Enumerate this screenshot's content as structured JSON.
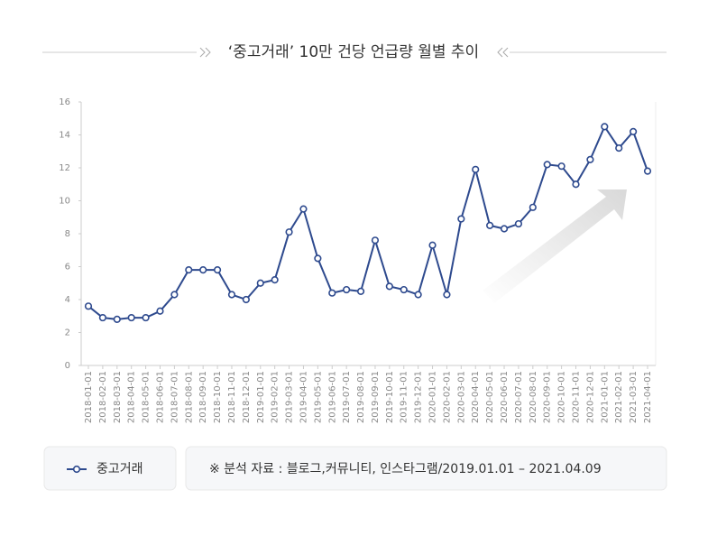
{
  "chart_data": {
    "type": "line",
    "title": "‘중고거래’ 10만 건당 언급량 월별 추이",
    "categories": [
      "2018-01-01",
      "2018-02-01",
      "2018-03-01",
      "2018-04-01",
      "2018-05-01",
      "2018-06-01",
      "2018-07-01",
      "2018-08-01",
      "2018-09-01",
      "2018-10-01",
      "2018-11-01",
      "2018-12-01",
      "2019-01-01",
      "2019-02-01",
      "2019-03-01",
      "2019-04-01",
      "2019-05-01",
      "2019-06-01",
      "2019-07-01",
      "2019-08-01",
      "2019-09-01",
      "2019-10-01",
      "2019-11-01",
      "2019-12-01",
      "2020-01-01",
      "2020-02-01",
      "2020-03-01",
      "2020-04-01",
      "2020-05-01",
      "2020-06-01",
      "2020-07-01",
      "2020-08-01",
      "2020-09-01",
      "2020-10-01",
      "2020-11-01",
      "2020-12-01",
      "2021-01-01",
      "2021-02-01",
      "2021-03-01",
      "2021-04-01"
    ],
    "series": [
      {
        "name": "중고거래",
        "color": "#2e4a8e",
        "values": [
          3.6,
          2.9,
          2.8,
          2.9,
          2.9,
          3.3,
          4.3,
          5.8,
          5.8,
          5.8,
          4.3,
          4.0,
          5.0,
          5.2,
          8.1,
          9.5,
          6.5,
          4.4,
          4.6,
          4.5,
          7.6,
          4.8,
          4.6,
          4.3,
          7.3,
          4.3,
          8.9,
          11.9,
          8.5,
          8.3,
          8.6,
          9.6,
          12.2,
          12.1,
          11.0,
          12.5,
          14.5,
          13.2,
          14.2,
          11.8
        ]
      }
    ],
    "ylim": [
      0,
      16
    ],
    "yticks": [
      0,
      2,
      4,
      6,
      8,
      10,
      12,
      14,
      16
    ],
    "note": "※ 분석 자료 : 블로그,커뮤니티, 인스타그램/2019.01.01 – 2021.04.09"
  }
}
